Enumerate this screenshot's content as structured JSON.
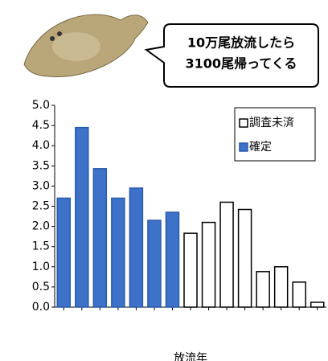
{
  "callout": {
    "lines": [
      "10万尾放流したら",
      "3100尾帰ってくる"
    ]
  },
  "chart_data": {
    "type": "bar",
    "xlabel": "放流年",
    "categories": [
      null,
      null,
      null,
      null,
      null,
      null,
      null,
      null,
      null,
      null,
      null,
      null,
      null,
      null,
      null
    ],
    "series": [
      {
        "name": "確定",
        "color": "#3d72c8",
        "edgecolor": "#2a5aa8",
        "values": [
          2.7,
          4.45,
          3.43,
          2.7,
          2.95,
          2.15,
          2.35,
          null,
          null,
          null,
          null,
          null,
          null,
          null,
          null
        ]
      },
      {
        "name": "調査未済",
        "color": "#ffffff",
        "edgecolor": "#000000",
        "values": [
          null,
          null,
          null,
          null,
          null,
          null,
          null,
          1.83,
          2.1,
          2.6,
          2.42,
          0.88,
          1.0,
          0.62,
          0.12
        ]
      }
    ],
    "ylim": [
      0,
      5
    ],
    "yticks": [
      {
        "value": 0,
        "label": "0.0"
      },
      {
        "value": 0.5,
        "label": "0.5"
      },
      {
        "value": 1,
        "label": "1.0"
      },
      {
        "value": 1.5,
        "label": "1.5"
      },
      {
        "value": 2,
        "label": "2.0"
      },
      {
        "value": 2.5,
        "label": "2.5"
      },
      {
        "value": 3,
        "label": "3.0"
      },
      {
        "value": 3.5,
        "label": "3.5"
      },
      {
        "value": 4,
        "label": "4.0"
      },
      {
        "value": 4.5,
        "label": "4.5"
      },
      {
        "value": 5,
        "label": "5.0"
      }
    ],
    "grid": false
  }
}
